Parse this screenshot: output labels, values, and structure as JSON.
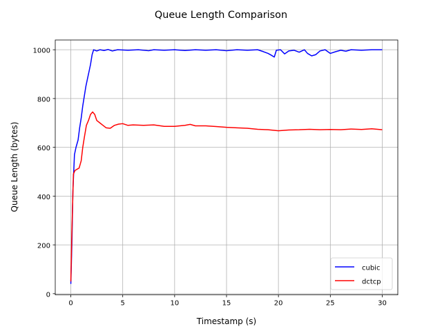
{
  "chart_data": {
    "type": "line",
    "title": "Queue Length Comparison",
    "xlabel": "Timestamp (s)",
    "ylabel": "Queue Length (bytes)",
    "xlim": [
      -1.5,
      31.5
    ],
    "ylim": [
      -5,
      1040
    ],
    "xticks": [
      0,
      5,
      10,
      15,
      20,
      25,
      30
    ],
    "yticks": [
      0,
      200,
      400,
      600,
      800,
      1000
    ],
    "grid": true,
    "legend_position": "lower right",
    "series": [
      {
        "name": "cubic",
        "color": "#0000ff",
        "points": [
          [
            0,
            40
          ],
          [
            0.1,
            200
          ],
          [
            0.2,
            420
          ],
          [
            0.35,
            570
          ],
          [
            0.5,
            600
          ],
          [
            0.7,
            630
          ],
          [
            0.85,
            680
          ],
          [
            1.0,
            720
          ],
          [
            1.15,
            770
          ],
          [
            1.3,
            810
          ],
          [
            1.45,
            850
          ],
          [
            1.6,
            880
          ],
          [
            1.75,
            910
          ],
          [
            1.9,
            940
          ],
          [
            2.05,
            980
          ],
          [
            2.2,
            1000
          ],
          [
            2.5,
            995
          ],
          [
            2.8,
            1000
          ],
          [
            3.2,
            997
          ],
          [
            3.6,
            1001
          ],
          [
            4.0,
            995
          ],
          [
            4.5,
            1000
          ],
          [
            5.5,
            998
          ],
          [
            6.5,
            1000
          ],
          [
            7.5,
            996
          ],
          [
            8.0,
            1000
          ],
          [
            9.0,
            998
          ],
          [
            10.0,
            1000
          ],
          [
            11.0,
            997
          ],
          [
            12.0,
            1000
          ],
          [
            13.0,
            998
          ],
          [
            14.0,
            1000
          ],
          [
            15.0,
            996
          ],
          [
            16.0,
            1000
          ],
          [
            17.0,
            998
          ],
          [
            18.0,
            1000
          ],
          [
            18.5,
            993
          ],
          [
            19.0,
            985
          ],
          [
            19.3,
            978
          ],
          [
            19.6,
            970
          ],
          [
            19.8,
            998
          ],
          [
            20.2,
            1000
          ],
          [
            20.6,
            983
          ],
          [
            21.0,
            995
          ],
          [
            21.5,
            998
          ],
          [
            22.0,
            990
          ],
          [
            22.5,
            1000
          ],
          [
            22.8,
            985
          ],
          [
            23.2,
            975
          ],
          [
            23.6,
            980
          ],
          [
            24.0,
            995
          ],
          [
            24.5,
            1000
          ],
          [
            25.0,
            985
          ],
          [
            25.5,
            992
          ],
          [
            26.0,
            998
          ],
          [
            26.5,
            994
          ],
          [
            27.0,
            1000
          ],
          [
            28.0,
            998
          ],
          [
            29.0,
            1000
          ],
          [
            30.0,
            1000
          ]
        ]
      },
      {
        "name": "dctcp",
        "color": "#ff0000",
        "points": [
          [
            0,
            50
          ],
          [
            0.1,
            250
          ],
          [
            0.25,
            490
          ],
          [
            0.4,
            505
          ],
          [
            0.6,
            510
          ],
          [
            0.8,
            515
          ],
          [
            1.0,
            545
          ],
          [
            1.15,
            600
          ],
          [
            1.3,
            640
          ],
          [
            1.5,
            690
          ],
          [
            1.7,
            710
          ],
          [
            1.9,
            735
          ],
          [
            2.1,
            745
          ],
          [
            2.3,
            735
          ],
          [
            2.5,
            710
          ],
          [
            2.8,
            700
          ],
          [
            3.1,
            690
          ],
          [
            3.4,
            680
          ],
          [
            3.8,
            678
          ],
          [
            4.2,
            690
          ],
          [
            4.6,
            695
          ],
          [
            5.0,
            697
          ],
          [
            5.5,
            690
          ],
          [
            6.0,
            692
          ],
          [
            7.0,
            690
          ],
          [
            8.0,
            692
          ],
          [
            9.0,
            686
          ],
          [
            10.0,
            686
          ],
          [
            11.0,
            690
          ],
          [
            11.5,
            694
          ],
          [
            12.0,
            688
          ],
          [
            13.0,
            688
          ],
          [
            14.0,
            685
          ],
          [
            15.0,
            682
          ],
          [
            16.0,
            680
          ],
          [
            17.0,
            678
          ],
          [
            18.0,
            674
          ],
          [
            19.0,
            672
          ],
          [
            20.0,
            668
          ],
          [
            21.0,
            671
          ],
          [
            22.0,
            672
          ],
          [
            23.0,
            674
          ],
          [
            24.0,
            672
          ],
          [
            25.0,
            673
          ],
          [
            26.0,
            672
          ],
          [
            27.0,
            675
          ],
          [
            28.0,
            673
          ],
          [
            29.0,
            676
          ],
          [
            30.0,
            672
          ]
        ]
      }
    ]
  }
}
